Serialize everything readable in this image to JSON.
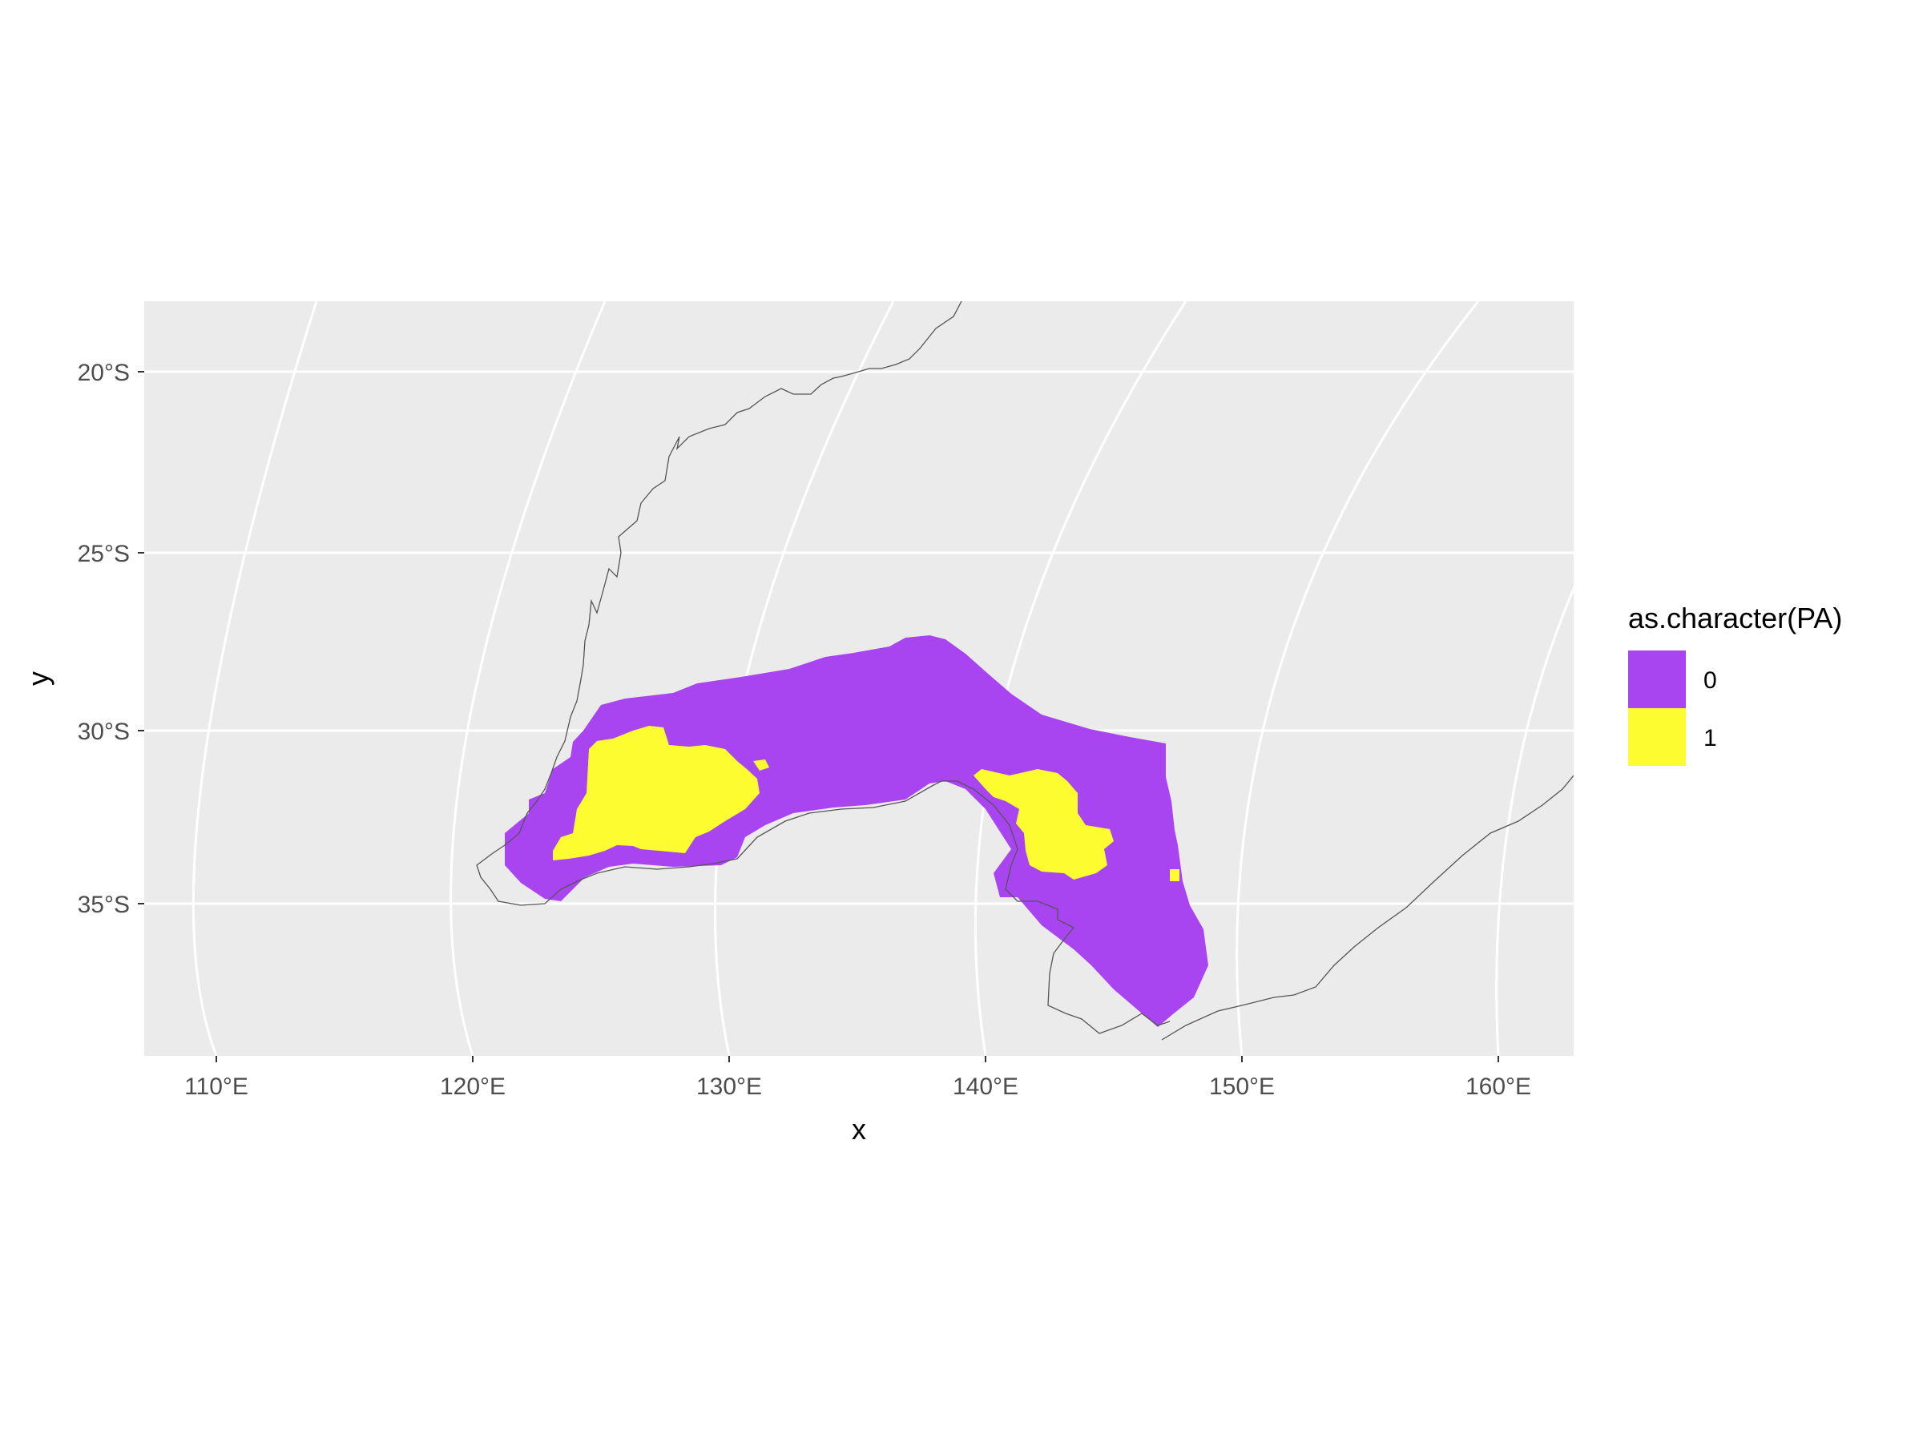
{
  "map": {
    "x_axis_title": "x",
    "y_axis_title": "y",
    "lon_ticks": [
      {
        "value": 110,
        "label": "110°E"
      },
      {
        "value": 120,
        "label": "120°E"
      },
      {
        "value": 130,
        "label": "130°E"
      },
      {
        "value": 140,
        "label": "140°E"
      },
      {
        "value": 150,
        "label": "150°E"
      },
      {
        "value": 160,
        "label": "160°E"
      }
    ],
    "lat_ticks": [
      {
        "value": -20,
        "label": "20°S"
      },
      {
        "value": -25,
        "label": "25°S"
      },
      {
        "value": -30,
        "label": "30°S"
      },
      {
        "value": -35,
        "label": "35°S"
      }
    ],
    "panel_background": "#ebebeb",
    "grid_color": "#ffffff",
    "coastline_color": "#555555"
  },
  "legend": {
    "title": "as.character(PA)",
    "items": [
      {
        "label": "0",
        "color": "#a945f0"
      },
      {
        "label": "1",
        "color": "#fcfc30"
      }
    ]
  }
}
